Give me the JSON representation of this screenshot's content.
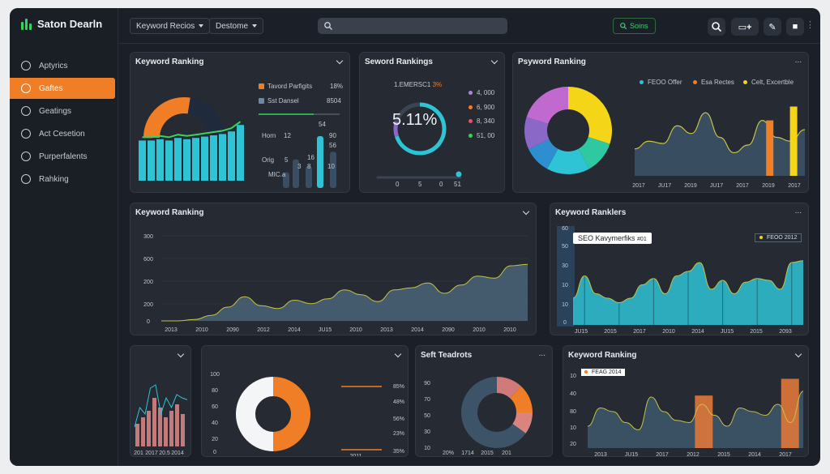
{
  "colors": {
    "accent_orange": "#f07e27",
    "teal": "#2fc3d6",
    "yellow": "#f5d518",
    "green": "#37d35e",
    "slate": "#3d5468",
    "bg": "#1b1f27",
    "panel": "#252a33"
  },
  "app": {
    "title": "Saton Dearln"
  },
  "sidebar": {
    "items": [
      {
        "label": "Aptyrics",
        "icon": "info-icon"
      },
      {
        "label": "Gaftes",
        "icon": "user-icon",
        "active": true
      },
      {
        "label": "Geatings",
        "icon": "chat-icon"
      },
      {
        "label": "Act Cesetion",
        "icon": "bulb-icon"
      },
      {
        "label": "Purperfalents",
        "icon": "settings-icon"
      },
      {
        "label": "Rahking",
        "icon": "badge-icon"
      }
    ]
  },
  "topbar": {
    "dropdown1": "Keyword Recios",
    "dropdown2": "Destome",
    "search_placeholder": "",
    "green_button": "Soins",
    "icons": [
      "search-icon",
      "window-plus-icon",
      "pin-icon",
      "lock-icon"
    ]
  },
  "panel1": {
    "title": "Keyword Ranking",
    "legend": [
      {
        "label": "Tavord Parfigits",
        "value": "18%",
        "color": "#f07e27"
      },
      {
        "label": "Sst Dansel",
        "value": "8504",
        "color": "#6f87a0"
      }
    ],
    "row_labels": [
      "Horn",
      "Orig",
      "MIC.a"
    ],
    "bar_labels": [
      "12",
      "5",
      "54",
      "90",
      "56",
      "16",
      "3",
      "8",
      "10"
    ],
    "gauge_share": 0.55,
    "bars": [
      0.62,
      0.62,
      0.64,
      0.62,
      0.66,
      0.64,
      0.66,
      0.68,
      0.7,
      0.72,
      0.76,
      0.86
    ],
    "mini_bars": [
      0.3,
      0.55,
      0.42,
      1.0,
      0.7
    ]
  },
  "panel2": {
    "title": "Seword Rankings",
    "subtitle_prefix": "1.EMERSC1",
    "subtitle_highlight": "3%",
    "big_value": "5.11%",
    "ring_share": 0.7,
    "legend": [
      {
        "label": "4, 000",
        "color": "#b084d6"
      },
      {
        "label": "6, 900",
        "color": "#f07e27"
      },
      {
        "label": "8, 340",
        "color": "#e0546b"
      },
      {
        "label": "51, 00",
        "color": "#37d35e"
      }
    ],
    "axis": [
      "0",
      "5",
      "0",
      "51"
    ],
    "slider_value": 0.98
  },
  "panel3": {
    "title": "Psyword Ranking",
    "menu": "...",
    "legend": [
      {
        "label": "FEOO Offer",
        "color": "#2fc3d6"
      },
      {
        "label": "Esa Rectes",
        "color": "#f07e27"
      },
      {
        "label": "Celt, Excertble",
        "color": "#f5d518"
      }
    ],
    "donut": [
      {
        "share": 0.3,
        "color": "#f5d518"
      },
      {
        "share": 0.12,
        "color": "#2ec9a0"
      },
      {
        "share": 0.16,
        "color": "#2fc3d6"
      },
      {
        "share": 0.1,
        "color": "#2d8fd0"
      },
      {
        "share": 0.12,
        "color": "#8a68c8"
      },
      {
        "share": 0.2,
        "color": "#c06ad0"
      }
    ],
    "x_labels": [
      "2017",
      "JU17",
      "2019",
      "JU17",
      "2017",
      "2019",
      "2017"
    ],
    "area": [
      0.35,
      0.45,
      0.42,
      0.65,
      0.55,
      0.82,
      0.5,
      0.3,
      0.4,
      0.72,
      0.5,
      0.45,
      0.6
    ],
    "bars": [
      {
        "x": 0.82,
        "h": 0.72,
        "color": "#f07e27"
      },
      {
        "x": 0.96,
        "h": 0.9,
        "color": "#f5d518"
      }
    ]
  },
  "panel4": {
    "title": "Keyword Ranking",
    "y_labels": [
      "300",
      "600",
      "200",
      "200",
      "0"
    ],
    "x_labels": [
      "2013",
      "2010",
      "2090",
      "2012",
      "2014",
      "JU15",
      "2010",
      "2013",
      "2014",
      "2090",
      "2010",
      "2010"
    ],
    "series": [
      0.0,
      0.0,
      0.02,
      0.08,
      0.2,
      0.35,
      0.22,
      0.18,
      0.3,
      0.25,
      0.32,
      0.45,
      0.38,
      0.28,
      0.45,
      0.48,
      0.55,
      0.4,
      0.52,
      0.65,
      0.62,
      0.8,
      0.82
    ]
  },
  "panel5": {
    "title": "Keyword Ranklers",
    "menu": "...",
    "tooltip": "SEO Kavymerfiks",
    "tooltip_suffix": "#01",
    "badge": "FEOO 2012",
    "y_labels": [
      "60",
      "50",
      "30",
      "10",
      "10",
      "0"
    ],
    "x_labels": [
      "JU15",
      "2015",
      "2017",
      "2010",
      "2014",
      "JU15",
      "2015",
      "2093"
    ],
    "series": [
      0.3,
      0.55,
      0.35,
      0.3,
      0.25,
      0.3,
      0.45,
      0.52,
      0.35,
      0.55,
      0.6,
      0.7,
      0.4,
      0.5,
      0.35,
      0.48,
      0.52,
      0.5,
      0.4,
      0.7,
      0.72
    ]
  },
  "panel6": {
    "x_labels": [
      "201",
      "2017",
      "20.5",
      "2014"
    ],
    "bars": [
      0.35,
      0.45,
      0.55,
      0.75,
      0.6,
      0.45,
      0.55,
      0.65,
      0.5
    ],
    "line": [
      0.3,
      0.6,
      0.5,
      0.9,
      0.95,
      0.5,
      0.75,
      0.6,
      0.8,
      0.75,
      0.72
    ]
  },
  "panel7": {
    "y_labels": [
      "100",
      "80",
      "60",
      "40",
      "20",
      "0"
    ],
    "right_values": [
      "85%",
      "48%",
      "56%",
      "23%",
      "35%"
    ],
    "bottom_label": "2011",
    "donut_share": 0.5
  },
  "panel8": {
    "title": "Seft Teadrots",
    "menu": "...",
    "y_labels": [
      "90",
      "70",
      "50",
      "30",
      "10"
    ],
    "x_labels": [
      "20%",
      "1714",
      "2015",
      "201"
    ],
    "donut": [
      {
        "share": 0.12,
        "color": "#d07a7a"
      },
      {
        "share": 0.13,
        "color": "#f07e27"
      },
      {
        "share": 0.1,
        "color": "#d9847c"
      },
      {
        "share": 0.65,
        "color": "#3d5468"
      }
    ]
  },
  "panel9": {
    "title": "Keyword Ranking",
    "badge": "FEAG 2014",
    "y_labels": [
      "10",
      "40",
      "80",
      "10",
      "20"
    ],
    "x_labels": [
      "2013",
      "JU15",
      "2017",
      "2012",
      "2015",
      "2014",
      "2017"
    ],
    "series": [
      0.3,
      0.55,
      0.5,
      0.35,
      0.25,
      0.7,
      0.5,
      0.38,
      0.35,
      0.6,
      0.45,
      0.3,
      0.55,
      0.5,
      0.45,
      0.6,
      0.35,
      0.78
    ],
    "bars": [
      {
        "x": 0.52,
        "h": 0.72
      },
      {
        "x": 0.92,
        "h": 0.95
      }
    ]
  }
}
